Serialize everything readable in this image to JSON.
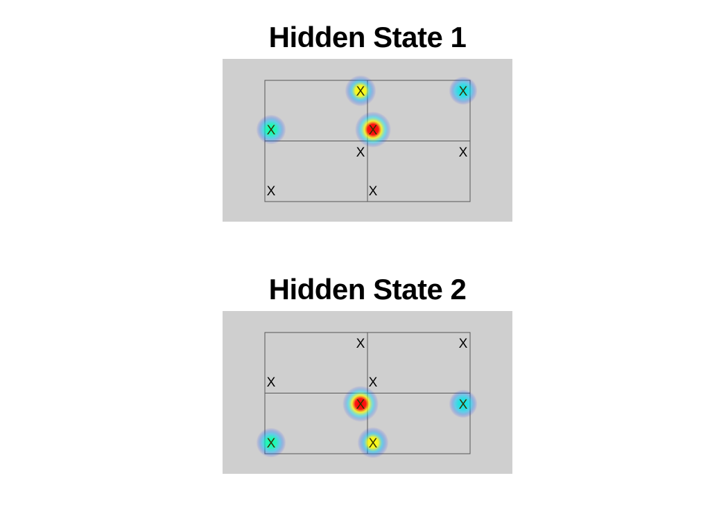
{
  "panels": [
    {
      "title": "Hidden State 1",
      "markers": [
        {
          "label": "X",
          "weight": 0.65,
          "color": "#ffff00"
        },
        {
          "label": "X",
          "weight": 0.45,
          "color": "#00e5e5"
        },
        {
          "label": "X",
          "weight": 0.55,
          "color": "#00ffb0"
        },
        {
          "label": "X",
          "weight": 1.0,
          "color": "#ff0000"
        },
        {
          "label": "X",
          "weight": 0,
          "color": "#000000"
        },
        {
          "label": "X",
          "weight": 0,
          "color": "#000000"
        },
        {
          "label": "X",
          "weight": 0,
          "color": "#000000"
        },
        {
          "label": "X",
          "weight": 0,
          "color": "#000000"
        }
      ]
    },
    {
      "title": "Hidden State 2",
      "markers": [
        {
          "label": "X",
          "weight": 0,
          "color": "#000000"
        },
        {
          "label": "X",
          "weight": 0,
          "color": "#000000"
        },
        {
          "label": "X",
          "weight": 0,
          "color": "#000000"
        },
        {
          "label": "X",
          "weight": 0,
          "color": "#000000"
        },
        {
          "label": "X",
          "weight": 1.0,
          "color": "#ff0000"
        },
        {
          "label": "X",
          "weight": 0.45,
          "color": "#00e5e5"
        },
        {
          "label": "X",
          "weight": 0.55,
          "color": "#00ffb0"
        },
        {
          "label": "X",
          "weight": 0.65,
          "color": "#ffff00"
        }
      ]
    }
  ],
  "colors": {
    "panel_background": "#cfcfcf",
    "grid_line": "#555555",
    "heat_core": "#ff0000",
    "heat_mid": "#ffff00",
    "heat_edge": "#0000ff"
  }
}
